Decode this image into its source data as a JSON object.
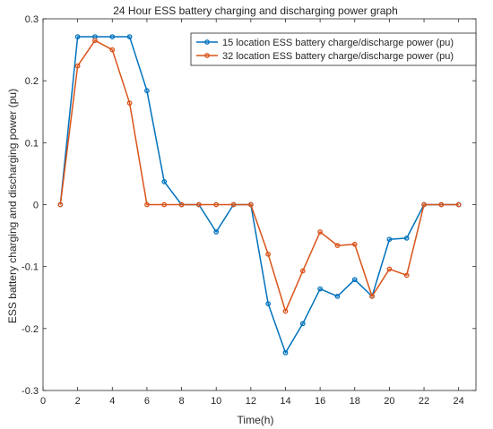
{
  "chart_data": {
    "type": "line",
    "title": "24 Hour ESS battery charging and discharging power graph",
    "xlabel": "Time(h)",
    "ylabel": "ESS battery charging and discharging power (pu)",
    "xlim": [
      0,
      25
    ],
    "ylim": [
      -0.3,
      0.3
    ],
    "xticks": [
      0,
      2,
      4,
      6,
      8,
      10,
      12,
      14,
      16,
      18,
      20,
      22,
      24
    ],
    "xtick_labels": [
      "0",
      "2",
      "4",
      "6",
      "8",
      "10",
      "12",
      "14",
      "16",
      "18",
      "20",
      "22",
      "24"
    ],
    "yticks": [
      -0.3,
      -0.2,
      -0.1,
      0,
      0.1,
      0.2,
      0.3
    ],
    "ytick_labels": [
      "-0.3",
      "-0.2",
      "-0.1",
      "0",
      "0.1",
      "0.2",
      "0.3"
    ],
    "grid": false,
    "legend_position": "top-right",
    "x": [
      1,
      2,
      3,
      4,
      5,
      6,
      7,
      8,
      9,
      10,
      11,
      12,
      13,
      14,
      15,
      16,
      17,
      18,
      19,
      20,
      21,
      22,
      23,
      24
    ],
    "series": [
      {
        "name": "15 location ESS battery charge/discharge power (pu)",
        "color": "#0072BD",
        "values": [
          0,
          0.271,
          0.271,
          0.271,
          0.271,
          0.184,
          0.037,
          0,
          0,
          -0.044,
          0,
          0,
          -0.16,
          -0.239,
          -0.192,
          -0.136,
          -0.148,
          -0.121,
          -0.148,
          -0.056,
          -0.054,
          0,
          0,
          0
        ]
      },
      {
        "name": "32 location ESS battery charge/discharge power (pu)",
        "color": "#D95319",
        "values": [
          0,
          0.224,
          0.265,
          0.25,
          0.164,
          0,
          0,
          0,
          0,
          0,
          0,
          0,
          -0.08,
          -0.172,
          -0.107,
          -0.044,
          -0.066,
          -0.064,
          -0.148,
          -0.104,
          -0.114,
          0,
          0,
          0
        ]
      }
    ]
  }
}
